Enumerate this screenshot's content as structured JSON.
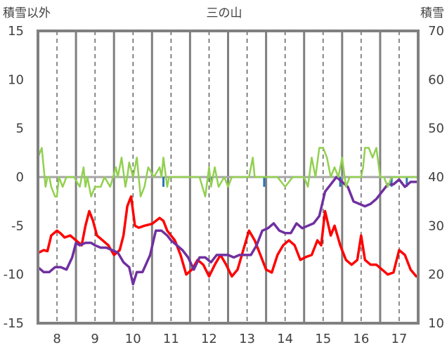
{
  "chart_data": {
    "type": "line",
    "title": "三の山",
    "left_axis_label": "積雪以外",
    "right_axis_label": "積雪",
    "left_ylim": [
      -15,
      15
    ],
    "left_yticks": [
      15,
      10,
      5,
      0,
      -5,
      -10,
      -15
    ],
    "left_ytick_labels": [
      "15",
      "10",
      "5",
      "0",
      "-5",
      "-10",
      "-15"
    ],
    "right_ylim": [
      10,
      70
    ],
    "right_yticks": [
      70,
      60,
      50,
      40,
      30,
      20,
      10
    ],
    "right_ytick_labels": [
      "70",
      "60",
      "50",
      "40",
      "30",
      "20",
      "10"
    ],
    "xlim": [
      7.5,
      17.5
    ],
    "x_ticks": [
      8,
      9,
      10,
      11,
      12,
      13,
      14,
      15,
      16,
      17
    ],
    "x_tick_labels": [
      "8",
      "9",
      "10",
      "11",
      "12",
      "13",
      "14",
      "15",
      "16",
      "17"
    ],
    "grid": "vertical dashed at day centers, solid at day boundaries",
    "legend": "none",
    "colors": {
      "red": "#ff0000",
      "purple": "#7030a0",
      "green": "#92d050",
      "blue": "#2e75b6",
      "zero_line": "#a6a6a6",
      "frame": "#808080"
    },
    "series": [
      {
        "color": "red",
        "axis": "left",
        "x": [
          7.5,
          7.65,
          7.75,
          7.85,
          8.0,
          8.1,
          8.2,
          8.35,
          8.5,
          8.65,
          8.75,
          8.85,
          8.95,
          9.05,
          9.2,
          9.35,
          9.5,
          9.65,
          9.75,
          9.85,
          9.95,
          10.05,
          10.15,
          10.3,
          10.5,
          10.7,
          10.8,
          10.9,
          11.0,
          11.1,
          11.25,
          11.4,
          11.55,
          11.7,
          11.85,
          12.0,
          12.15,
          12.3,
          12.45,
          12.6,
          12.75,
          12.9,
          13.05,
          13.2,
          13.35,
          13.5,
          13.65,
          13.8,
          13.95,
          14.1,
          14.25,
          14.4,
          14.55,
          14.7,
          14.85,
          14.95,
          15.05,
          15.2,
          15.3,
          15.45,
          15.6,
          15.75,
          15.9,
          16.0,
          16.1,
          16.25,
          16.4,
          16.55,
          16.7,
          16.85,
          17.0,
          17.15,
          17.3,
          17.45
        ],
        "y": [
          -7.8,
          -7.5,
          -7.6,
          -6.0,
          -5.5,
          -5.8,
          -6.2,
          -6.0,
          -6.5,
          -7.0,
          -5.0,
          -3.5,
          -4.5,
          -6.0,
          -6.5,
          -7.0,
          -8.0,
          -7.5,
          -6.0,
          -3.0,
          -2.0,
          -5.0,
          -5.2,
          -5.0,
          -4.8,
          -4.2,
          -4.5,
          -5.5,
          -6.0,
          -6.5,
          -8.0,
          -10.0,
          -9.5,
          -8.5,
          -9.0,
          -10.2,
          -9.0,
          -8.0,
          -9.0,
          -10.2,
          -9.5,
          -7.5,
          -5.5,
          -6.5,
          -8.0,
          -9.5,
          -9.8,
          -8.0,
          -7.0,
          -6.5,
          -7.0,
          -8.5,
          -8.2,
          -8.0,
          -6.5,
          -7.0,
          -3.5,
          -6.0,
          -5.0,
          -7.0,
          -8.5,
          -9.0,
          -8.5,
          -6.0,
          -8.5,
          -9.0,
          -9.0,
          -9.5,
          -10.0,
          -9.8,
          -7.5,
          -8.0,
          -9.5,
          -10.2
        ]
      },
      {
        "color": "purple",
        "axis": "right",
        "x": [
          7.5,
          7.65,
          7.8,
          7.95,
          8.1,
          8.25,
          8.4,
          8.5,
          8.6,
          8.75,
          8.9,
          9.0,
          9.15,
          9.3,
          9.45,
          9.6,
          9.75,
          9.9,
          10.0,
          10.1,
          10.25,
          10.45,
          10.6,
          10.75,
          10.9,
          11.0,
          11.15,
          11.3,
          11.45,
          11.6,
          11.75,
          11.9,
          12.05,
          12.2,
          12.35,
          12.5,
          12.65,
          12.8,
          12.95,
          13.1,
          13.25,
          13.4,
          13.55,
          13.7,
          13.85,
          14.0,
          14.15,
          14.3,
          14.45,
          14.6,
          14.75,
          14.9,
          15.05,
          15.2,
          15.35,
          15.5,
          15.65,
          15.8,
          15.95,
          16.1,
          16.25,
          16.4,
          16.55,
          16.7,
          16.85,
          17.0,
          17.15,
          17.3,
          17.45
        ],
        "y": [
          21.5,
          20.5,
          20.5,
          21.5,
          21.5,
          21.0,
          23.5,
          26.5,
          26.0,
          26.5,
          26.5,
          26.0,
          25.5,
          25.5,
          25.0,
          24.5,
          22.5,
          21.5,
          18.0,
          20.5,
          20.5,
          24.0,
          29.0,
          29.0,
          28.0,
          27.0,
          26.0,
          25.0,
          23.5,
          21.0,
          23.5,
          23.5,
          22.5,
          24.0,
          24.0,
          24.0,
          23.5,
          24.0,
          24.0,
          24.0,
          26.0,
          29.0,
          29.5,
          30.5,
          29.0,
          28.5,
          28.5,
          30.5,
          29.5,
          30.0,
          30.5,
          32.0,
          37.0,
          38.5,
          40.0,
          39.0,
          38.0,
          35.0,
          34.5,
          34.0,
          34.5,
          35.5,
          37.0,
          38.5,
          38.5,
          39.5,
          38.0,
          39.0,
          39.0
        ]
      },
      {
        "color": "green",
        "axis": "left",
        "x": [
          7.5,
          7.6,
          7.65,
          7.7,
          7.75,
          7.8,
          7.85,
          7.95,
          8.0,
          8.05,
          8.15,
          8.25,
          8.35,
          8.45,
          8.6,
          8.7,
          8.75,
          8.8,
          8.9,
          9.0,
          9.05,
          9.15,
          9.25,
          9.4,
          9.55,
          9.6,
          9.7,
          9.8,
          9.85,
          9.9,
          10.0,
          10.1,
          10.15,
          10.2,
          10.3,
          10.4,
          10.55,
          10.7,
          10.75,
          10.8,
          10.9,
          10.95,
          11.0,
          11.1,
          11.3,
          11.5,
          11.75,
          11.9,
          12.0,
          12.05,
          12.15,
          12.2,
          12.25,
          12.4,
          12.5,
          12.6,
          12.75,
          12.9,
          13.05,
          13.15,
          13.2,
          13.3,
          13.45,
          13.6,
          13.8,
          14.0,
          14.2,
          14.3,
          14.5,
          14.6,
          14.7,
          14.8,
          14.9,
          15.0,
          15.1,
          15.2,
          15.3,
          15.4,
          15.5,
          15.6,
          15.7,
          15.8,
          15.9,
          16.0,
          16.05,
          16.1,
          16.2,
          16.3,
          16.4,
          16.5,
          16.55,
          16.6,
          16.7,
          16.8,
          16.9,
          17.0,
          17.1,
          17.2,
          17.3,
          17.45
        ],
        "y": [
          2.0,
          3.0,
          1.0,
          -1.0,
          0.0,
          0.0,
          -1.0,
          -2.0,
          -2.0,
          0.0,
          -1.0,
          0.0,
          0.0,
          0.0,
          -1.0,
          1.0,
          -1.0,
          0.0,
          -2.0,
          -1.0,
          -1.0,
          -1.0,
          0.0,
          -1.0,
          1.0,
          0.0,
          2.0,
          -1.0,
          0.0,
          1.5,
          0.0,
          2.0,
          0.0,
          -2.0,
          -1.0,
          1.0,
          0.0,
          1.0,
          0.0,
          2.0,
          -1.0,
          0.0,
          0.0,
          0.0,
          0.0,
          0.0,
          0.0,
          -2.0,
          1.0,
          -1.0,
          1.0,
          0.0,
          -1.0,
          0.0,
          -1.0,
          0.0,
          0.0,
          0.0,
          0.0,
          2.0,
          0.0,
          0.0,
          0.0,
          0.0,
          0.0,
          -1.0,
          0.0,
          0.0,
          0.0,
          -1.0,
          2.0,
          0.0,
          3.0,
          3.0,
          2.0,
          0.0,
          1.0,
          0.0,
          2.0,
          -1.0,
          0.0,
          0.0,
          0.0,
          0.0,
          1.0,
          3.0,
          3.0,
          2.0,
          3.0,
          0.0,
          0.0,
          0.0,
          -1.0,
          0.0,
          0.0,
          0.0,
          0.0,
          0.0,
          0.0,
          0.0
        ]
      },
      {
        "color": "blue",
        "axis": "left",
        "type": "bar",
        "x": [
          10.8,
          12.05,
          13.45,
          15.45,
          16.8,
          17.2
        ],
        "y": [
          -1.0,
          -0.5,
          -1.0,
          -1.0,
          -1.0,
          -1.0
        ]
      }
    ]
  }
}
